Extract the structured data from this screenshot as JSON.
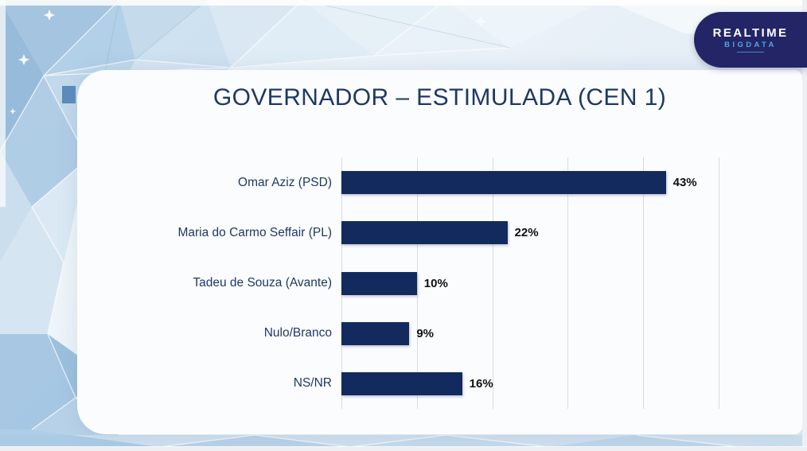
{
  "title": "GOVERNADOR – ESTIMULADA (CEN 1)",
  "logo": {
    "line1": "REALTIME",
    "line2": "BIGDATA"
  },
  "colors": {
    "bar": "#122A5E",
    "title_text": "#1F3864",
    "category_text": "#1F3864",
    "value_text": "#111111",
    "grid_line": "#DADADA",
    "card_bg": "#FBFCFE",
    "logo_bg": "#232567",
    "logo_primary_text": "#FFFFFF",
    "logo_secondary_text": "#4FA7DC"
  },
  "chart_data": {
    "type": "bar",
    "orientation": "horizontal",
    "title": "GOVERNADOR – ESTIMULADA (CEN 1)",
    "categories": [
      "Omar Aziz (PSD)",
      "Maria do Carmo Seffair (PL)",
      "Tadeu de Souza (Avante)",
      "Nulo/Branco",
      "NS/NR"
    ],
    "values": [
      43,
      22,
      10,
      9,
      16
    ],
    "value_labels": [
      "43%",
      "22%",
      "10%",
      "9%",
      "16%"
    ],
    "xlim": [
      0,
      50
    ],
    "grid_step": 10,
    "grid": true,
    "legend": false,
    "bar_color": "#122A5E"
  }
}
